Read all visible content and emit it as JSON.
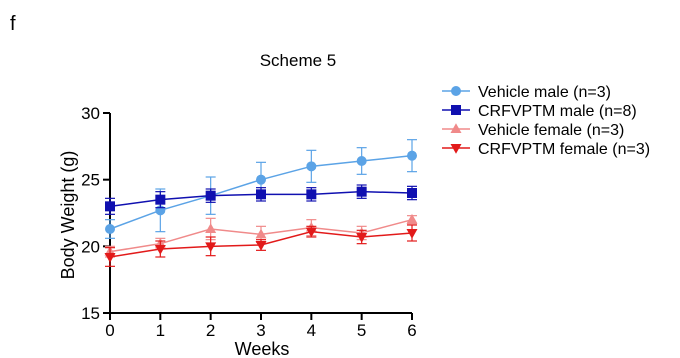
{
  "panel_label": "f",
  "chart_data": {
    "type": "line",
    "title": "Scheme 5",
    "xlabel": "Weeks",
    "ylabel": "Body Weight (g)",
    "x": [
      0,
      1,
      2,
      3,
      4,
      5,
      6
    ],
    "xlim": [
      0,
      6
    ],
    "ylim": [
      15,
      30
    ],
    "yticks": [
      15,
      20,
      25,
      30
    ],
    "xticks": [
      0,
      1,
      2,
      3,
      4,
      5,
      6
    ],
    "grid": false,
    "legend_position": "top-right",
    "series": [
      {
        "name": "Vehicle male (n=3)",
        "color": "#5ba3e6",
        "marker": "circle",
        "values": [
          21.3,
          22.7,
          23.8,
          25.0,
          26.0,
          26.4,
          26.8
        ],
        "errors": [
          0.7,
          1.6,
          1.4,
          1.3,
          1.2,
          1.0,
          1.2
        ]
      },
      {
        "name": "CRFVPTM male (n=8)",
        "color": "#1010b0",
        "marker": "square",
        "values": [
          23.0,
          23.5,
          23.8,
          23.9,
          23.9,
          24.1,
          24.0
        ],
        "errors": [
          0.6,
          0.6,
          0.5,
          0.5,
          0.5,
          0.5,
          0.5
        ]
      },
      {
        "name": "Vehicle female (n=3)",
        "color": "#f08a8a",
        "marker": "triangle-up",
        "values": [
          19.6,
          20.2,
          21.3,
          20.9,
          21.4,
          21.0,
          22.0
        ],
        "errors": [
          0.4,
          0.4,
          0.8,
          0.6,
          0.6,
          0.5,
          0.3
        ]
      },
      {
        "name": "CRFVPTM female (n=3)",
        "color": "#e21a1a",
        "marker": "triangle-down",
        "values": [
          19.2,
          19.8,
          20.0,
          20.1,
          21.1,
          20.7,
          21.0
        ],
        "errors": [
          0.7,
          0.6,
          0.7,
          0.4,
          0.4,
          0.5,
          0.6
        ]
      }
    ]
  }
}
